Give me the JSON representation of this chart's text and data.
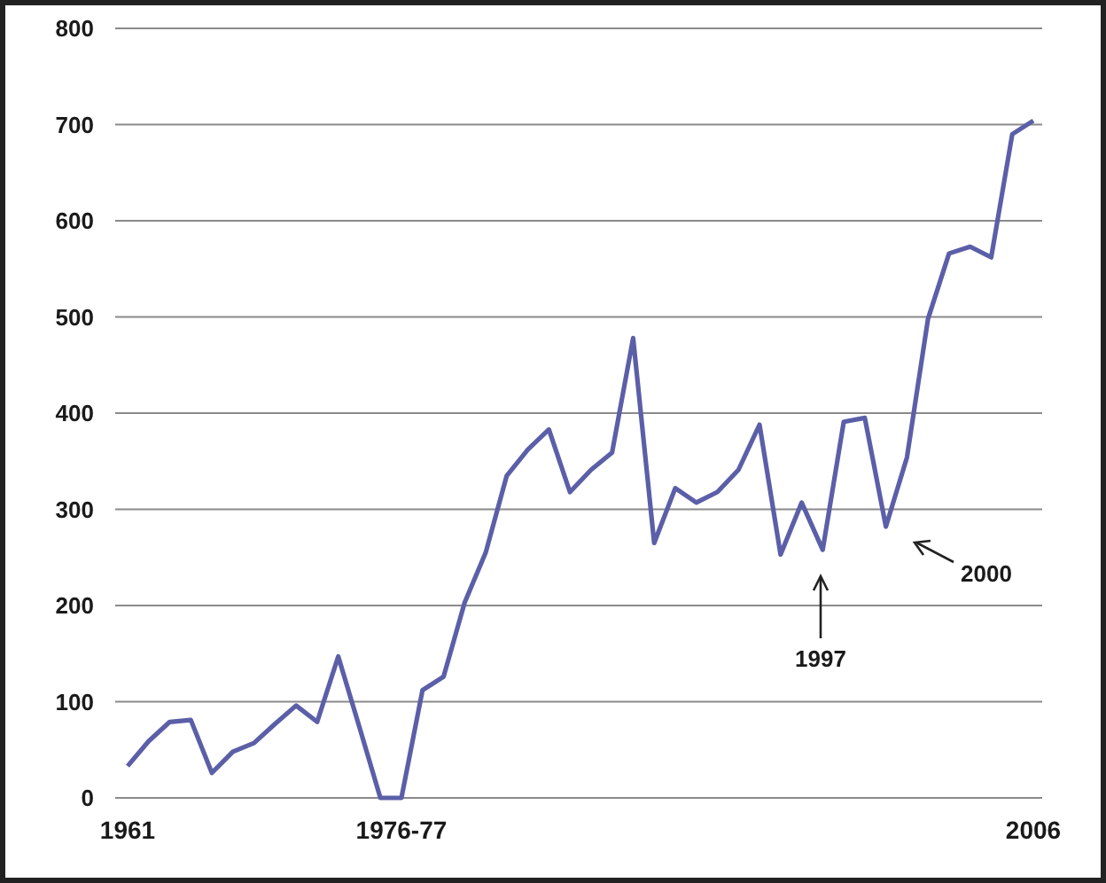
{
  "chart_data": {
    "type": "line",
    "categories": [
      "1961",
      null,
      null,
      null,
      null,
      null,
      null,
      null,
      null,
      null,
      null,
      null,
      null,
      "1976-77",
      null,
      null,
      null,
      null,
      null,
      null,
      null,
      null,
      null,
      null,
      null,
      null,
      null,
      null,
      null,
      null,
      null,
      null,
      null,
      null,
      null,
      null,
      null,
      null,
      null,
      null,
      null,
      null,
      null,
      "2006"
    ],
    "series": [
      {
        "color": "#5b5fa8",
        "values": [
          33,
          59,
          79,
          81,
          26,
          48,
          57,
          77,
          96,
          79,
          147,
          74,
          0,
          0,
          112,
          126,
          203,
          255,
          335,
          362,
          383,
          318,
          341,
          359,
          478,
          265,
          322,
          307,
          318,
          341,
          388,
          253,
          307,
          258,
          391,
          395,
          282,
          354,
          498,
          566,
          573,
          562,
          690,
          704
        ]
      }
    ],
    "ylim": [
      0,
      800
    ],
    "yticks": [
      0,
      100,
      200,
      300,
      400,
      500,
      600,
      700,
      800
    ],
    "grid": "y",
    "marker": "none",
    "line_style": "solid",
    "annotations": [
      "1997",
      "2000"
    ]
  }
}
